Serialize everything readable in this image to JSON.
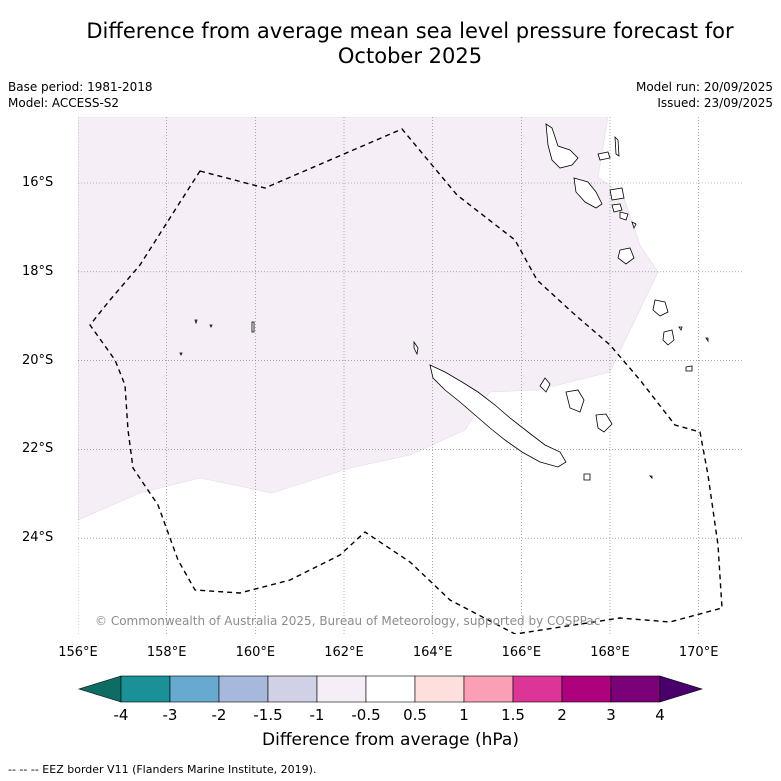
{
  "title_line1": "Difference from average mean sea level pressure forecast for",
  "title_line2": "October 2025",
  "base_period": "Base period: 1981-2018",
  "model": "Model: ACCESS-S2",
  "model_run": "Model run: 20/09/2025",
  "issued": "Issued: 23/09/2025",
  "copyright": "© Commonwealth of Australia 2025, Bureau of Meteorology, supported by COSPPac",
  "map": {
    "lon_range": [
      156.0,
      171.0
    ],
    "lat_range": [
      -26.2,
      -14.5
    ],
    "lat_ticks": [
      {
        "value": -16,
        "label": "16°S"
      },
      {
        "value": -18,
        "label": "18°S"
      },
      {
        "value": -20,
        "label": "20°S"
      },
      {
        "value": -22,
        "label": "22°S"
      },
      {
        "value": -24,
        "label": "24°S"
      }
    ],
    "lon_ticks": [
      {
        "value": 156,
        "label": "156°E"
      },
      {
        "value": 158,
        "label": "158°E"
      },
      {
        "value": 160,
        "label": "160°E"
      },
      {
        "value": 162,
        "label": "162°E"
      },
      {
        "value": 164,
        "label": "164°E"
      },
      {
        "value": 166,
        "label": "166°E"
      },
      {
        "value": 168,
        "label": "168°E"
      },
      {
        "value": 170,
        "label": "170°E"
      }
    ],
    "anomaly_region_color": "#f5eef6",
    "anomaly_class": "-1 to -0.5 hPa"
  },
  "colorbar": {
    "title": "Difference from average (hPa)",
    "labels": [
      "-4",
      "-3",
      "-2",
      "-1.5",
      "-1",
      "-0.5",
      "0.5",
      "1",
      "1.5",
      "2",
      "3",
      "4"
    ],
    "colors": [
      "#1a9097",
      "#67a9cf",
      "#a6b9dc",
      "#d0d1e6",
      "#f5eef6",
      "#ffffff",
      "#fde0dd",
      "#fa9fb5",
      "#dd3497",
      "#ae017e",
      "#7a0177"
    ],
    "under_color": "#0d6d64",
    "over_color": "#49006a"
  },
  "footnote": "--  --  -- EEZ border V11 (Flanders Marine Institute, 2019)."
}
